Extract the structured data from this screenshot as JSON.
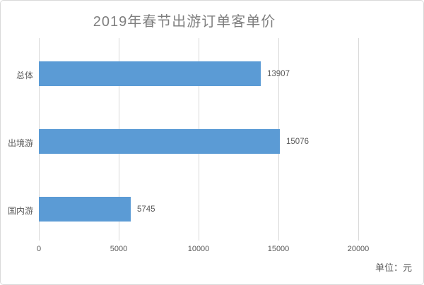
{
  "chart_data": {
    "type": "bar",
    "orientation": "horizontal",
    "title": "2019年春节出游订单客单价",
    "categories": [
      "总体",
      "出境游",
      "国内游"
    ],
    "values": [
      13907,
      15076,
      5745
    ],
    "value_labels": [
      "13907",
      "15076",
      "5745"
    ],
    "x_ticks": [
      "0",
      "5000",
      "10000",
      "15000",
      "20000"
    ],
    "xlim": [
      0,
      20000
    ],
    "unit_label": "单位：元",
    "grid": true,
    "legend": "none",
    "colors": {
      "bar": "#5b9bd5",
      "gridline": "#d9d9d9",
      "title_text": "#7f7f7f",
      "label_text": "#595959",
      "border": "#d9d9d9",
      "background": "#ffffff"
    }
  }
}
